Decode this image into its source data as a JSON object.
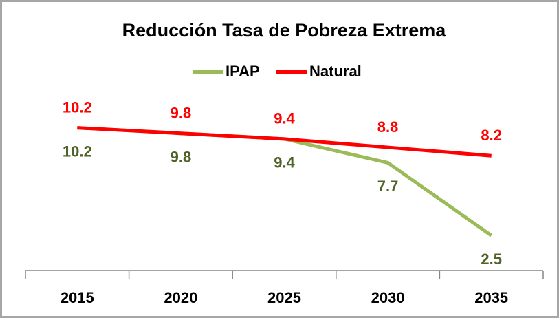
{
  "chart_data": {
    "type": "line",
    "title": "Reducción Tasa de Pobreza Extrema",
    "categories": [
      "2015",
      "2020",
      "2025",
      "2030",
      "2035"
    ],
    "series": [
      {
        "name": "IPAP",
        "color": "#9bbb59",
        "label_color": "#4f6228",
        "label_position": "below",
        "values": [
          10.2,
          9.8,
          9.4,
          7.7,
          2.5
        ]
      },
      {
        "name": "Natural",
        "color": "#ff0000",
        "label_color": "#ff0000",
        "label_position": "above",
        "values": [
          10.2,
          9.8,
          9.4,
          8.8,
          8.2
        ]
      }
    ],
    "ylim": [
      0,
      12
    ],
    "legend": "top"
  }
}
